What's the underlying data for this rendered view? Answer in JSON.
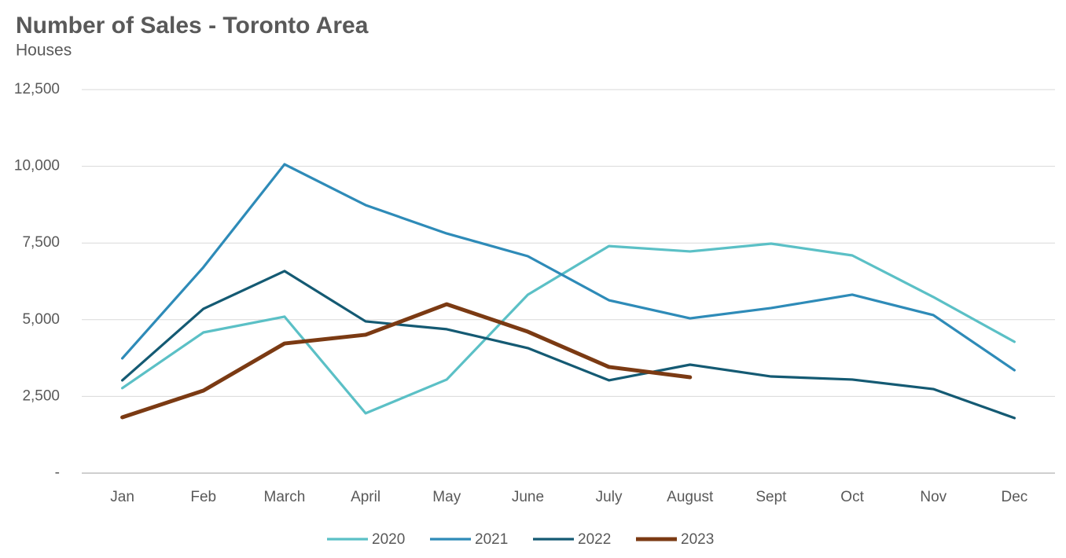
{
  "chart_data": {
    "type": "line",
    "title": "Number of Sales - Toronto Area",
    "subtitle": "Houses",
    "categories": [
      "Jan",
      "Feb",
      "March",
      "April",
      "May",
      "June",
      "July",
      "August",
      "Sept",
      "Oct",
      "Nov",
      "Dec"
    ],
    "series": [
      {
        "name": "2020",
        "color": "#5bc0c6",
        "values": [
          2770,
          4585,
          5100,
          1950,
          3050,
          5815,
          7400,
          7225,
          7480,
          7095,
          5740,
          4280
        ]
      },
      {
        "name": "2021",
        "color": "#2e8bb8",
        "values": [
          3740,
          6710,
          10065,
          8735,
          7810,
          7070,
          5635,
          5045,
          5380,
          5815,
          5150,
          3355
        ]
      },
      {
        "name": "2022",
        "color": "#145a73",
        "values": [
          3025,
          5355,
          6585,
          4945,
          4690,
          4075,
          3025,
          3535,
          3150,
          3050,
          2740,
          1795
        ]
      },
      {
        "name": "2023",
        "color": "#7b3a13",
        "values": [
          1820,
          2690,
          4225,
          4510,
          5505,
          4610,
          3460,
          3125,
          null,
          null,
          null,
          null
        ]
      }
    ],
    "ylim": [
      0,
      12500
    ],
    "yticks": [
      {
        "value": 0,
        "label": "-"
      },
      {
        "value": 2500,
        "label": "2,500"
      },
      {
        "value": 5000,
        "label": "5,000"
      },
      {
        "value": 7500,
        "label": "7,500"
      },
      {
        "value": 10000,
        "label": "10,000"
      },
      {
        "value": 12500,
        "label": "12,500"
      }
    ],
    "grid": true,
    "legend": "bottom"
  }
}
